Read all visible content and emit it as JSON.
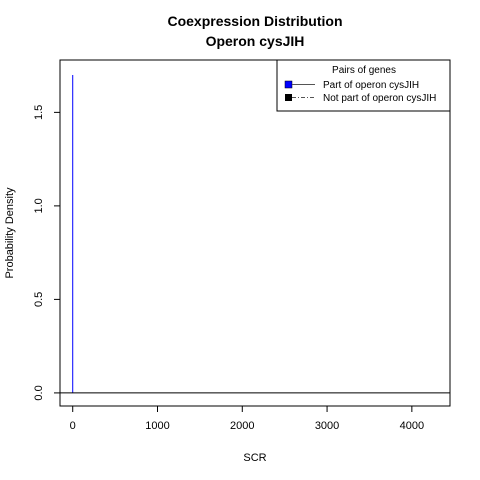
{
  "chart_data": {
    "type": "line",
    "title": "Coexpression Distribution",
    "subtitle": "Operon cysJIH",
    "xlabel": "SCR",
    "ylabel": "Probability Density",
    "xlim": [
      -150,
      4450
    ],
    "ylim": [
      -0.07,
      1.78
    ],
    "x_ticks": [
      0,
      1000,
      2000,
      3000,
      4000
    ],
    "x_tick_labels": [
      "0",
      "1000",
      "2000",
      "3000",
      "4000"
    ],
    "y_ticks": [
      0.0,
      0.5,
      1.0,
      1.5
    ],
    "y_tick_labels": [
      "0.0",
      "0.5",
      "1.0",
      "1.5"
    ],
    "grid": false,
    "legend": {
      "title": "Pairs of genes",
      "placement": "top-right",
      "entries": [
        {
          "label": "Part of operon cysJIH",
          "color": "#0000ff",
          "line_style": "solid"
        },
        {
          "label": "Not part of operon cysJIH",
          "color": "#000000",
          "line_style": "dashed"
        }
      ]
    },
    "series": [
      {
        "name": "Part of operon cysJIH",
        "color": "#0000ff",
        "style": "solid",
        "x": [
          0,
          0
        ],
        "y": [
          0,
          1.7
        ]
      },
      {
        "name": "Not part of operon cysJIH",
        "color": "#000000",
        "style": "dashed",
        "x": [
          -150,
          4450
        ],
        "y": [
          0,
          0
        ]
      }
    ]
  }
}
